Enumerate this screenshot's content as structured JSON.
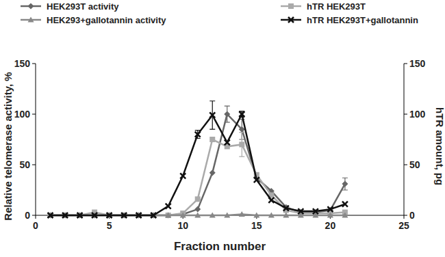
{
  "chart_data": {
    "type": "line",
    "x_label": "Fraction number",
    "y_label": "Relative telomerase activity, %",
    "y2_label": "hTR amount, pg",
    "x": [
      1,
      2,
      3,
      4,
      5,
      6,
      7,
      8,
      9,
      10,
      11,
      12,
      13,
      14,
      15,
      16,
      17,
      18,
      19,
      20,
      21
    ],
    "xlim": [
      0,
      25
    ],
    "xticks": [
      0,
      5,
      10,
      15,
      20,
      25
    ],
    "ylim": [
      0,
      150
    ],
    "yticks": [
      0,
      50,
      100,
      150
    ],
    "y2lim": [
      0,
      150
    ],
    "y2ticks": [
      0,
      50,
      100,
      150
    ],
    "grid": false,
    "legend": "top",
    "series": [
      {
        "name": "HEK293T activity",
        "color": "#666666",
        "marker": "diamond",
        "axis": "y",
        "values": [
          0,
          0,
          0,
          0,
          0,
          0,
          0,
          0,
          0,
          1,
          6,
          42,
          100,
          85,
          37,
          24,
          8,
          3,
          3,
          5,
          31
        ],
        "errors": [
          null,
          null,
          null,
          null,
          null,
          null,
          null,
          null,
          null,
          null,
          null,
          null,
          8,
          10,
          null,
          null,
          null,
          null,
          null,
          null,
          6
        ]
      },
      {
        "name": "hTR HEK293T",
        "color": "#aaaaaa",
        "marker": "square",
        "axis": "y2",
        "values": [
          0,
          0,
          0,
          3,
          0,
          0,
          0,
          0,
          0,
          2,
          16,
          75,
          68,
          70,
          40,
          20,
          5,
          2,
          2,
          2,
          3
        ],
        "errors": [
          null,
          null,
          null,
          null,
          null,
          null,
          null,
          null,
          null,
          null,
          null,
          null,
          null,
          12,
          null,
          null,
          null,
          null,
          null,
          null,
          null
        ]
      },
      {
        "name": "HEK293+gallotannin activity",
        "color": "#888888",
        "marker": "triangle",
        "axis": "y",
        "values": [
          0,
          0,
          0,
          0,
          0,
          0,
          0,
          0,
          0,
          0,
          0,
          0,
          0,
          1,
          0,
          0,
          0,
          0,
          0,
          0,
          0
        ],
        "errors": [
          null,
          null,
          null,
          null,
          null,
          null,
          null,
          null,
          null,
          null,
          null,
          null,
          null,
          null,
          null,
          null,
          null,
          null,
          null,
          null,
          null
        ]
      },
      {
        "name": "hTR HEK293T+gallotannin",
        "color": "#111111",
        "marker": "x",
        "axis": "y2",
        "values": [
          0,
          0,
          0,
          0,
          0,
          0,
          0,
          0,
          9,
          39,
          80,
          99,
          72,
          100,
          35,
          15,
          7,
          4,
          4,
          6,
          11
        ],
        "errors": [
          null,
          null,
          null,
          null,
          null,
          null,
          null,
          null,
          null,
          null,
          4,
          14,
          null,
          3,
          null,
          null,
          null,
          null,
          null,
          null,
          null
        ]
      }
    ]
  }
}
